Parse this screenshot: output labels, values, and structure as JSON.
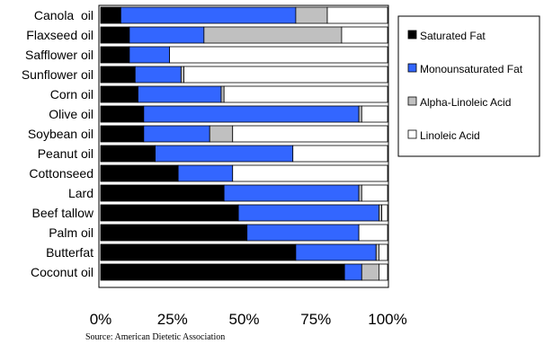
{
  "chart_data": {
    "type": "bar",
    "orientation": "horizontal",
    "stacked": true,
    "percent_stacked": true,
    "categories": [
      "Canola  oil",
      "Flaxseed oil",
      "Safflower oil",
      "Sunflower oil",
      "Corn oil",
      "Olive oil",
      "Soybean oil",
      "Peanut oil",
      "Cottonseed",
      "Lard",
      "Beef tallow",
      "Palm oil",
      "Butterfat",
      "Coconut oil"
    ],
    "series": [
      {
        "name": "Saturated Fat",
        "color": "#000000",
        "values": [
          7,
          10,
          10,
          12,
          13,
          15,
          15,
          19,
          27,
          43,
          48,
          51,
          68,
          85
        ]
      },
      {
        "name": "Monounsaturated Fat",
        "color": "#3366ff",
        "values": [
          61,
          26,
          14,
          16,
          29,
          75,
          23,
          48,
          19,
          47,
          49,
          39,
          28,
          6
        ]
      },
      {
        "name": "Alpha-Linoleic Acid",
        "color": "#c0c0c0",
        "values": [
          11,
          48,
          0,
          1,
          1,
          1,
          8,
          0,
          0,
          1,
          1,
          0,
          1,
          6
        ]
      },
      {
        "name": "Linoleic Acid",
        "color": "#ffffff",
        "values": [
          21,
          16,
          76,
          71,
          57,
          9,
          54,
          33,
          54,
          9,
          2,
          10,
          3,
          3
        ]
      }
    ],
    "xlim": [
      0,
      100
    ],
    "x_ticks": [
      "0%",
      "25%",
      "50%",
      "75%",
      "100%"
    ],
    "legend_position": "right",
    "grid": false
  },
  "source": "Source: American Dietetic Association"
}
